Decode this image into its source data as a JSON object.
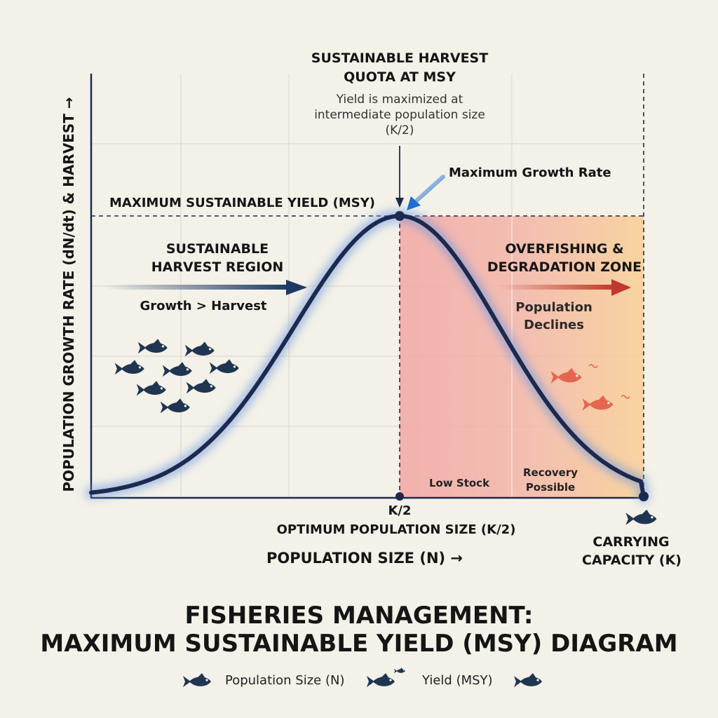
{
  "annotations": {
    "top_title_line1": "SUSTAINABLE HARVEST",
    "top_title_line2": "QUOTA AT MSY",
    "yield_note_line1": "Yield is maximized at",
    "yield_note_line2": "intermediate population size",
    "yield_note_line3": "(K/2)",
    "max_growth_rate": "Maximum Growth Rate",
    "msy_line_label": "MAXIMUM SUSTAINABLE YIELD (MSY)",
    "sustainable_line1": "SUSTAINABLE",
    "sustainable_line2": "HARVEST REGION",
    "growth_harvest": "Growth > Harvest",
    "overfishing_line1": "OVERFISHING &",
    "overfishing_line2": "DEGRADATION ZONE",
    "declines_line1": "Population",
    "declines_line2": "Declines",
    "low_stock": "Low Stock",
    "recovery_line1": "Recovery",
    "recovery_line2": "Possible"
  },
  "axes": {
    "x_label": "POPULATION SIZE (N) →",
    "y_label": "POPULATION GROWTH RATE (dN/dt) & HARVEST →",
    "k2_tick": "K/2",
    "k2_caption": "OPTIMUM POPULATION SIZE (K/2)",
    "carrying_line1": "CARRYING",
    "carrying_line2": "CAPACITY (K)"
  },
  "title": {
    "line1": "FISHERIES MANAGEMENT:",
    "line2": "MAXIMUM SUSTAINABLE YIELD (MSY) DIAGRAM"
  },
  "legend": {
    "item1": "Population Size (N)",
    "item2": "Yield (MSY)"
  },
  "colors": {
    "curve": "#1b2a4e",
    "glow": "#6d98e0",
    "fish": "#1f3552",
    "fish_stressed": "#e5664e",
    "harvest_arrow": "#1e3a63",
    "decline_arrow": "#c0392b",
    "zone_pink": "#f3a7a0",
    "zone_orange": "#f8c694",
    "pointer": "#1b6fd1"
  }
}
